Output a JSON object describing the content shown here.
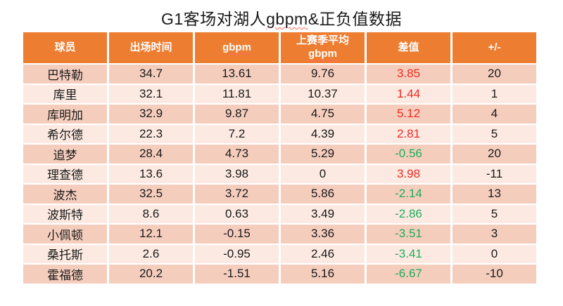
{
  "title": {
    "prefix": "G1客场对湖人",
    "spellcheck_word": "gbpm",
    "suffix": "&正负值数据"
  },
  "table": {
    "columns": [
      {
        "key": "player",
        "label": "球员"
      },
      {
        "key": "minutes",
        "label": "出场时间"
      },
      {
        "key": "gbpm",
        "label": "gbpm"
      },
      {
        "key": "last_avg",
        "label_top": "上赛季平均",
        "label_bottom": "gbpm"
      },
      {
        "key": "diff",
        "label": "差值"
      },
      {
        "key": "pm",
        "label": "+/-"
      }
    ],
    "rows": [
      {
        "player": "巴特勒",
        "minutes": "34.7",
        "gbpm": "13.61",
        "last_avg": "9.76",
        "diff": "3.85",
        "pm": "20"
      },
      {
        "player": "库里",
        "minutes": "32.1",
        "gbpm": "11.81",
        "last_avg": "10.37",
        "diff": "1.44",
        "pm": "1"
      },
      {
        "player": "库明加",
        "minutes": "32.9",
        "gbpm": "9.87",
        "last_avg": "4.75",
        "diff": "5.12",
        "pm": "4"
      },
      {
        "player": "希尔德",
        "minutes": "22.3",
        "gbpm": "7.2",
        "last_avg": "4.39",
        "diff": "2.81",
        "pm": "5"
      },
      {
        "player": "追梦",
        "minutes": "28.4",
        "gbpm": "4.73",
        "last_avg": "5.29",
        "diff": "-0.56",
        "pm": "20"
      },
      {
        "player": "理查德",
        "minutes": "13.6",
        "gbpm": "3.98",
        "last_avg": "0",
        "diff": "3.98",
        "pm": "-11"
      },
      {
        "player": "波杰",
        "minutes": "32.5",
        "gbpm": "3.72",
        "last_avg": "5.86",
        "diff": "-2.14",
        "pm": "13"
      },
      {
        "player": "波斯特",
        "minutes": "8.6",
        "gbpm": "0.63",
        "last_avg": "3.49",
        "diff": "-2.86",
        "pm": "5"
      },
      {
        "player": "小佩顿",
        "minutes": "12.1",
        "gbpm": "-0.15",
        "last_avg": "3.36",
        "diff": "-3.51",
        "pm": "3"
      },
      {
        "player": "桑托斯",
        "minutes": "2.6",
        "gbpm": "-0.95",
        "last_avg": "2.46",
        "diff": "-3.41",
        "pm": "0"
      },
      {
        "player": "霍福德",
        "minutes": "20.2",
        "gbpm": "-1.51",
        "last_avg": "5.16",
        "diff": "-6.67",
        "pm": "-10"
      }
    ]
  },
  "colors": {
    "header_bg": "#ED7D31",
    "header_text": "#FFFFFF",
    "row_dark": "#F5CDBD",
    "row_light": "#FCE9E1",
    "text": "#1A1A1A",
    "diff_positive": "#EE2B23",
    "diff_negative": "#1DAD5C",
    "spellcheck_underline": "#FF6A5E"
  },
  "chart_data": {
    "type": "table",
    "title": "G1客场对湖人gbpm&正负值数据",
    "columns": [
      "球员",
      "出场时间",
      "gbpm",
      "上赛季平均gbpm",
      "差值",
      "+/-"
    ],
    "rows": [
      [
        "巴特勒",
        34.7,
        13.61,
        9.76,
        3.85,
        20
      ],
      [
        "库里",
        32.1,
        11.81,
        10.37,
        1.44,
        1
      ],
      [
        "库明加",
        32.9,
        9.87,
        4.75,
        5.12,
        4
      ],
      [
        "希尔德",
        22.3,
        7.2,
        4.39,
        2.81,
        5
      ],
      [
        "追梦",
        28.4,
        4.73,
        5.29,
        -0.56,
        20
      ],
      [
        "理查德",
        13.6,
        3.98,
        0,
        3.98,
        -11
      ],
      [
        "波杰",
        32.5,
        3.72,
        5.86,
        -2.14,
        13
      ],
      [
        "波斯特",
        8.6,
        0.63,
        3.49,
        -2.86,
        5
      ],
      [
        "小佩顿",
        12.1,
        -0.15,
        3.36,
        -3.51,
        3
      ],
      [
        "桑托斯",
        2.6,
        -0.95,
        2.46,
        -3.41,
        0
      ],
      [
        "霍福德",
        20.2,
        -1.51,
        5.16,
        -6.67,
        -10
      ]
    ],
    "notes": "差值 column: positive values red, negative values green; 差值 = gbpm - 上赛季平均gbpm"
  }
}
